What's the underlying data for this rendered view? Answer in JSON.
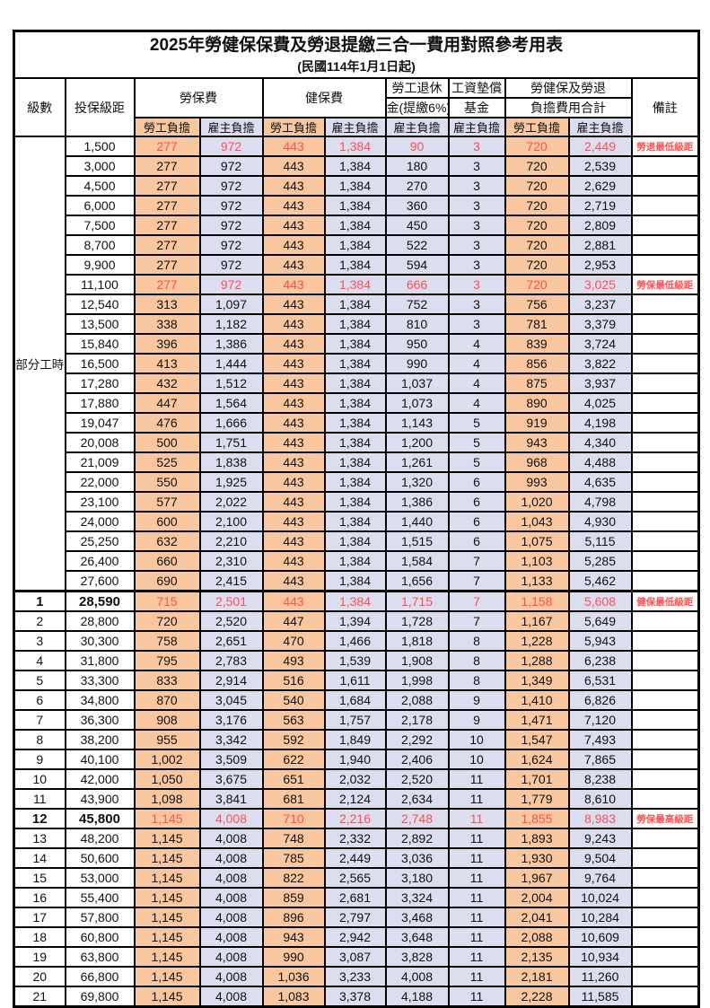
{
  "title": "2025年勞健保保費及勞退提繳三合一費用對照參考用表",
  "subtitle": "(民國114年1月1日起)",
  "colors": {
    "employee_bg": "#F8C79F",
    "employer_bg": "#DCDDEE",
    "highlight_text": "#FF5050",
    "border": "#000000"
  },
  "columns": {
    "level": "級數",
    "bracket": "投保級距",
    "labor": "勞保費",
    "health": "健保費",
    "pension_l1": "勞工退休",
    "pension_l2": "金(提繳6%)",
    "fund_l1": "工資墊償",
    "fund_l2": "基金",
    "total_l1": "勞健保及勞退",
    "total_l2": "負擔費用合計",
    "remark": "備註",
    "employee_share": "勞工負擔",
    "employer_share": "雇主負擔"
  },
  "part_time": {
    "label": "部分工時",
    "rowspan": 23
  },
  "rows": [
    {
      "level": "",
      "bracket": "1,500",
      "v": [
        "277",
        "972",
        "443",
        "1,384",
        "90",
        "3",
        "720",
        "2,449"
      ],
      "remark": "勞退最低級距",
      "red": true
    },
    {
      "level": "",
      "bracket": "3,000",
      "v": [
        "277",
        "972",
        "443",
        "1,384",
        "180",
        "3",
        "720",
        "2,539"
      ],
      "remark": ""
    },
    {
      "level": "",
      "bracket": "4,500",
      "v": [
        "277",
        "972",
        "443",
        "1,384",
        "270",
        "3",
        "720",
        "2,629"
      ],
      "remark": ""
    },
    {
      "level": "",
      "bracket": "6,000",
      "v": [
        "277",
        "972",
        "443",
        "1,384",
        "360",
        "3",
        "720",
        "2,719"
      ],
      "remark": ""
    },
    {
      "level": "",
      "bracket": "7,500",
      "v": [
        "277",
        "972",
        "443",
        "1,384",
        "450",
        "3",
        "720",
        "2,809"
      ],
      "remark": ""
    },
    {
      "level": "",
      "bracket": "8,700",
      "v": [
        "277",
        "972",
        "443",
        "1,384",
        "522",
        "3",
        "720",
        "2,881"
      ],
      "remark": ""
    },
    {
      "level": "",
      "bracket": "9,900",
      "v": [
        "277",
        "972",
        "443",
        "1,384",
        "594",
        "3",
        "720",
        "2,953"
      ],
      "remark": ""
    },
    {
      "level": "",
      "bracket": "11,100",
      "v": [
        "277",
        "972",
        "443",
        "1,384",
        "666",
        "3",
        "720",
        "3,025"
      ],
      "remark": "勞保最低級距",
      "red": true
    },
    {
      "level": "",
      "bracket": "12,540",
      "v": [
        "313",
        "1,097",
        "443",
        "1,384",
        "752",
        "3",
        "756",
        "3,237"
      ],
      "remark": ""
    },
    {
      "level": "",
      "bracket": "13,500",
      "v": [
        "338",
        "1,182",
        "443",
        "1,384",
        "810",
        "3",
        "781",
        "3,379"
      ],
      "remark": ""
    },
    {
      "level": "",
      "bracket": "15,840",
      "v": [
        "396",
        "1,386",
        "443",
        "1,384",
        "950",
        "4",
        "839",
        "3,724"
      ],
      "remark": ""
    },
    {
      "level": "",
      "bracket": "16,500",
      "v": [
        "413",
        "1,444",
        "443",
        "1,384",
        "990",
        "4",
        "856",
        "3,822"
      ],
      "remark": ""
    },
    {
      "level": "",
      "bracket": "17,280",
      "v": [
        "432",
        "1,512",
        "443",
        "1,384",
        "1,037",
        "4",
        "875",
        "3,937"
      ],
      "remark": ""
    },
    {
      "level": "",
      "bracket": "17,880",
      "v": [
        "447",
        "1,564",
        "443",
        "1,384",
        "1,073",
        "4",
        "890",
        "4,025"
      ],
      "remark": ""
    },
    {
      "level": "",
      "bracket": "19,047",
      "v": [
        "476",
        "1,666",
        "443",
        "1,384",
        "1,143",
        "5",
        "919",
        "4,198"
      ],
      "remark": ""
    },
    {
      "level": "",
      "bracket": "20,008",
      "v": [
        "500",
        "1,751",
        "443",
        "1,384",
        "1,200",
        "5",
        "943",
        "4,340"
      ],
      "remark": ""
    },
    {
      "level": "",
      "bracket": "21,009",
      "v": [
        "525",
        "1,838",
        "443",
        "1,384",
        "1,261",
        "5",
        "968",
        "4,488"
      ],
      "remark": ""
    },
    {
      "level": "",
      "bracket": "22,000",
      "v": [
        "550",
        "1,925",
        "443",
        "1,384",
        "1,320",
        "6",
        "993",
        "4,635"
      ],
      "remark": ""
    },
    {
      "level": "",
      "bracket": "23,100",
      "v": [
        "577",
        "2,022",
        "443",
        "1,384",
        "1,386",
        "6",
        "1,020",
        "4,798"
      ],
      "remark": ""
    },
    {
      "level": "",
      "bracket": "24,000",
      "v": [
        "600",
        "2,100",
        "443",
        "1,384",
        "1,440",
        "6",
        "1,043",
        "4,930"
      ],
      "remark": ""
    },
    {
      "level": "",
      "bracket": "25,250",
      "v": [
        "632",
        "2,210",
        "443",
        "1,384",
        "1,515",
        "6",
        "1,075",
        "5,115"
      ],
      "remark": ""
    },
    {
      "level": "",
      "bracket": "26,400",
      "v": [
        "660",
        "2,310",
        "443",
        "1,384",
        "1,584",
        "7",
        "1,103",
        "5,285"
      ],
      "remark": ""
    },
    {
      "level": "",
      "bracket": "27,600",
      "v": [
        "690",
        "2,415",
        "443",
        "1,384",
        "1,656",
        "7",
        "1,133",
        "5,462"
      ],
      "remark": ""
    },
    {
      "level": "1",
      "bracket": "28,590",
      "v": [
        "715",
        "2,501",
        "443",
        "1,384",
        "1,715",
        "7",
        "1,158",
        "5,608"
      ],
      "remark": "健保最低級距",
      "red": true,
      "bold": true,
      "section": true
    },
    {
      "level": "2",
      "bracket": "28,800",
      "v": [
        "720",
        "2,520",
        "447",
        "1,394",
        "1,728",
        "7",
        "1,167",
        "5,649"
      ],
      "remark": ""
    },
    {
      "level": "3",
      "bracket": "30,300",
      "v": [
        "758",
        "2,651",
        "470",
        "1,466",
        "1,818",
        "8",
        "1,228",
        "5,943"
      ],
      "remark": ""
    },
    {
      "level": "4",
      "bracket": "31,800",
      "v": [
        "795",
        "2,783",
        "493",
        "1,539",
        "1,908",
        "8",
        "1,288",
        "6,238"
      ],
      "remark": ""
    },
    {
      "level": "5",
      "bracket": "33,300",
      "v": [
        "833",
        "2,914",
        "516",
        "1,611",
        "1,998",
        "8",
        "1,349",
        "6,531"
      ],
      "remark": ""
    },
    {
      "level": "6",
      "bracket": "34,800",
      "v": [
        "870",
        "3,045",
        "540",
        "1,684",
        "2,088",
        "9",
        "1,410",
        "6,826"
      ],
      "remark": ""
    },
    {
      "level": "7",
      "bracket": "36,300",
      "v": [
        "908",
        "3,176",
        "563",
        "1,757",
        "2,178",
        "9",
        "1,471",
        "7,120"
      ],
      "remark": ""
    },
    {
      "level": "8",
      "bracket": "38,200",
      "v": [
        "955",
        "3,342",
        "592",
        "1,849",
        "2,292",
        "10",
        "1,547",
        "7,493"
      ],
      "remark": ""
    },
    {
      "level": "9",
      "bracket": "40,100",
      "v": [
        "1,002",
        "3,509",
        "622",
        "1,940",
        "2,406",
        "10",
        "1,624",
        "7,865"
      ],
      "remark": ""
    },
    {
      "level": "10",
      "bracket": "42,000",
      "v": [
        "1,050",
        "3,675",
        "651",
        "2,032",
        "2,520",
        "11",
        "1,701",
        "8,238"
      ],
      "remark": ""
    },
    {
      "level": "11",
      "bracket": "43,900",
      "v": [
        "1,098",
        "3,841",
        "681",
        "2,124",
        "2,634",
        "11",
        "1,779",
        "8,610"
      ],
      "remark": ""
    },
    {
      "level": "12",
      "bracket": "45,800",
      "v": [
        "1,145",
        "4,008",
        "710",
        "2,216",
        "2,748",
        "11",
        "1,855",
        "8,983"
      ],
      "remark": "勞保最高級距",
      "red": true,
      "bold": true
    },
    {
      "level": "13",
      "bracket": "48,200",
      "v": [
        "1,145",
        "4,008",
        "748",
        "2,332",
        "2,892",
        "11",
        "1,893",
        "9,243"
      ],
      "remark": ""
    },
    {
      "level": "14",
      "bracket": "50,600",
      "v": [
        "1,145",
        "4,008",
        "785",
        "2,449",
        "3,036",
        "11",
        "1,930",
        "9,504"
      ],
      "remark": ""
    },
    {
      "level": "15",
      "bracket": "53,000",
      "v": [
        "1,145",
        "4,008",
        "822",
        "2,565",
        "3,180",
        "11",
        "1,967",
        "9,764"
      ],
      "remark": ""
    },
    {
      "level": "16",
      "bracket": "55,400",
      "v": [
        "1,145",
        "4,008",
        "859",
        "2,681",
        "3,324",
        "11",
        "2,004",
        "10,024"
      ],
      "remark": ""
    },
    {
      "level": "17",
      "bracket": "57,800",
      "v": [
        "1,145",
        "4,008",
        "896",
        "2,797",
        "3,468",
        "11",
        "2,041",
        "10,284"
      ],
      "remark": ""
    },
    {
      "level": "18",
      "bracket": "60,800",
      "v": [
        "1,145",
        "4,008",
        "943",
        "2,942",
        "3,648",
        "11",
        "2,088",
        "10,609"
      ],
      "remark": ""
    },
    {
      "level": "19",
      "bracket": "63,800",
      "v": [
        "1,145",
        "4,008",
        "990",
        "3,087",
        "3,828",
        "11",
        "2,135",
        "10,934"
      ],
      "remark": ""
    },
    {
      "level": "20",
      "bracket": "66,800",
      "v": [
        "1,145",
        "4,008",
        "1,036",
        "3,233",
        "4,008",
        "11",
        "2,181",
        "11,260"
      ],
      "remark": ""
    },
    {
      "level": "21",
      "bracket": "69,800",
      "v": [
        "1,145",
        "4,008",
        "1,083",
        "3,378",
        "4,188",
        "11",
        "2,228",
        "11,585"
      ],
      "remark": ""
    }
  ]
}
